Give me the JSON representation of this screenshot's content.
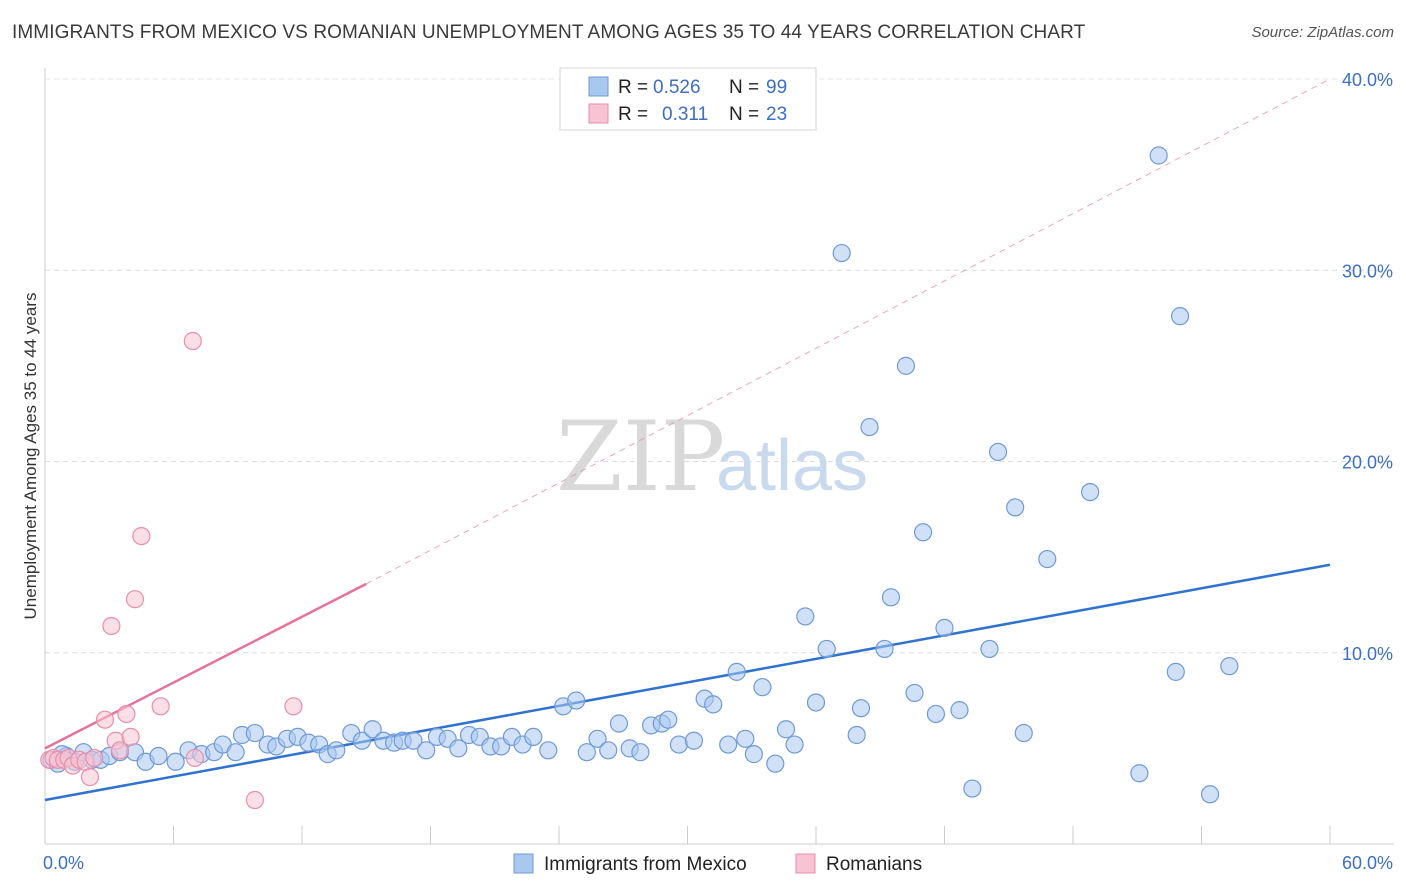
{
  "title": "IMMIGRANTS FROM MEXICO VS ROMANIAN UNEMPLOYMENT AMONG AGES 35 TO 44 YEARS CORRELATION CHART",
  "source": "Source: ZipAtlas.com",
  "watermark": {
    "zip": "ZIP",
    "atlas": "atlas"
  },
  "legend": {
    "r_label": "R =",
    "n_label": "N =",
    "rows": [
      {
        "r": "0.526",
        "n": "99",
        "color": "#a9c8f0",
        "border": "#6f9ad8"
      },
      {
        "r": "0.311",
        "n": "23",
        "color": "#f8c4d4",
        "border": "#e98eab"
      }
    ]
  },
  "bottom_legend": [
    "Immigrants from Mexico",
    "Romanians"
  ],
  "chart_data": {
    "type": "scatter",
    "title": "IMMIGRANTS FROM MEXICO VS ROMANIAN UNEMPLOYMENT AMONG AGES 35 TO 44 YEARS CORRELATION CHART",
    "xlabel": "",
    "ylabel": "Unemployment Among Ages 35 to 44 years",
    "xlim": [
      0,
      60
    ],
    "ylim": [
      0,
      40
    ],
    "x_tick_labels": [
      "0.0%",
      "60.0%"
    ],
    "y_ticks": [
      10,
      20,
      30,
      40
    ],
    "y_tick_labels": [
      "10.0%",
      "20.0%",
      "30.0%",
      "40.0%"
    ],
    "grid": true,
    "series": [
      {
        "name": "Immigrants from Mexico",
        "color": "#6f9ad8",
        "fill": "#a9c8f0",
        "trend": {
          "x": [
            0,
            60
          ],
          "y": [
            2.3,
            14.6
          ]
        },
        "points": [
          [
            0.3,
            4.4
          ],
          [
            0.6,
            4.2
          ],
          [
            1.0,
            4.6
          ],
          [
            1.4,
            4.3
          ],
          [
            1.8,
            4.8
          ],
          [
            2.2,
            4.4
          ],
          [
            2.6,
            4.4
          ],
          [
            3.0,
            4.6
          ],
          [
            3.5,
            4.8
          ],
          [
            4.2,
            4.8
          ],
          [
            4.7,
            4.3
          ],
          [
            5.3,
            4.6
          ],
          [
            6.1,
            4.3
          ],
          [
            6.7,
            4.9
          ],
          [
            7.3,
            4.7
          ],
          [
            7.9,
            4.8
          ],
          [
            8.3,
            5.2
          ],
          [
            8.9,
            4.8
          ],
          [
            9.2,
            5.7
          ],
          [
            9.8,
            5.8
          ],
          [
            10.4,
            5.2
          ],
          [
            10.8,
            5.1
          ],
          [
            11.3,
            5.5
          ],
          [
            11.8,
            5.6
          ],
          [
            12.3,
            5.3
          ],
          [
            12.8,
            5.2
          ],
          [
            13.2,
            4.7
          ],
          [
            13.6,
            4.9
          ],
          [
            14.3,
            5.8
          ],
          [
            14.8,
            5.4
          ],
          [
            15.3,
            6.0
          ],
          [
            15.8,
            5.4
          ],
          [
            16.3,
            5.3
          ],
          [
            16.7,
            5.4
          ],
          [
            17.2,
            5.4
          ],
          [
            17.8,
            4.9
          ],
          [
            18.3,
            5.6
          ],
          [
            18.8,
            5.5
          ],
          [
            19.3,
            5.0
          ],
          [
            19.8,
            5.7
          ],
          [
            20.3,
            5.6
          ],
          [
            20.8,
            5.1
          ],
          [
            21.3,
            5.1
          ],
          [
            21.8,
            5.6
          ],
          [
            22.3,
            5.2
          ],
          [
            22.8,
            5.6
          ],
          [
            23.5,
            4.9
          ],
          [
            24.2,
            7.2
          ],
          [
            24.8,
            7.5
          ],
          [
            25.3,
            4.8
          ],
          [
            25.8,
            5.5
          ],
          [
            26.3,
            4.9
          ],
          [
            26.8,
            6.3
          ],
          [
            27.3,
            5.0
          ],
          [
            27.8,
            4.8
          ],
          [
            28.3,
            6.2
          ],
          [
            28.8,
            6.3
          ],
          [
            29.1,
            6.5
          ],
          [
            29.6,
            5.2
          ],
          [
            30.3,
            5.4
          ],
          [
            30.8,
            7.6
          ],
          [
            31.2,
            7.3
          ],
          [
            31.9,
            5.2
          ],
          [
            32.3,
            9.0
          ],
          [
            32.7,
            5.5
          ],
          [
            33.1,
            4.7
          ],
          [
            33.5,
            8.2
          ],
          [
            34.1,
            4.2
          ],
          [
            34.6,
            6.0
          ],
          [
            35.0,
            5.2
          ],
          [
            35.5,
            11.9
          ],
          [
            36.0,
            7.4
          ],
          [
            36.5,
            10.2
          ],
          [
            37.2,
            30.9
          ],
          [
            37.9,
            5.7
          ],
          [
            38.1,
            7.1
          ],
          [
            38.5,
            21.8
          ],
          [
            39.2,
            10.2
          ],
          [
            39.5,
            12.9
          ],
          [
            40.2,
            25.0
          ],
          [
            40.6,
            7.9
          ],
          [
            41.0,
            16.3
          ],
          [
            41.6,
            6.8
          ],
          [
            42.0,
            11.3
          ],
          [
            42.7,
            7.0
          ],
          [
            43.3,
            2.9
          ],
          [
            44.1,
            10.2
          ],
          [
            44.5,
            20.5
          ],
          [
            45.3,
            17.6
          ],
          [
            45.7,
            5.8
          ],
          [
            46.8,
            14.9
          ],
          [
            48.8,
            18.4
          ],
          [
            51.1,
            3.7
          ],
          [
            52.0,
            36.0
          ],
          [
            52.8,
            9.0
          ],
          [
            53.0,
            27.6
          ],
          [
            54.4,
            2.6
          ],
          [
            55.3,
            9.3
          ],
          [
            0.8,
            4.7
          ]
        ]
      },
      {
        "name": "Romanians",
        "color": "#e98eab",
        "fill": "#f8c4d4",
        "trend": {
          "x": [
            0,
            15
          ],
          "y": [
            5.0,
            13.6
          ],
          "dashed_to": [
            60,
            40
          ]
        },
        "points": [
          [
            0.2,
            4.4
          ],
          [
            0.4,
            4.5
          ],
          [
            0.6,
            4.4
          ],
          [
            0.9,
            4.4
          ],
          [
            1.1,
            4.5
          ],
          [
            1.3,
            4.1
          ],
          [
            1.6,
            4.4
          ],
          [
            1.9,
            4.3
          ],
          [
            2.1,
            3.5
          ],
          [
            2.3,
            4.5
          ],
          [
            2.8,
            6.5
          ],
          [
            3.1,
            11.4
          ],
          [
            3.3,
            5.4
          ],
          [
            3.5,
            4.9
          ],
          [
            3.8,
            6.8
          ],
          [
            4.0,
            5.6
          ],
          [
            4.2,
            12.8
          ],
          [
            4.5,
            16.1
          ],
          [
            5.4,
            7.2
          ],
          [
            6.9,
            26.3
          ],
          [
            7.0,
            4.5
          ],
          [
            9.8,
            2.3
          ],
          [
            11.6,
            7.2
          ]
        ]
      }
    ]
  }
}
